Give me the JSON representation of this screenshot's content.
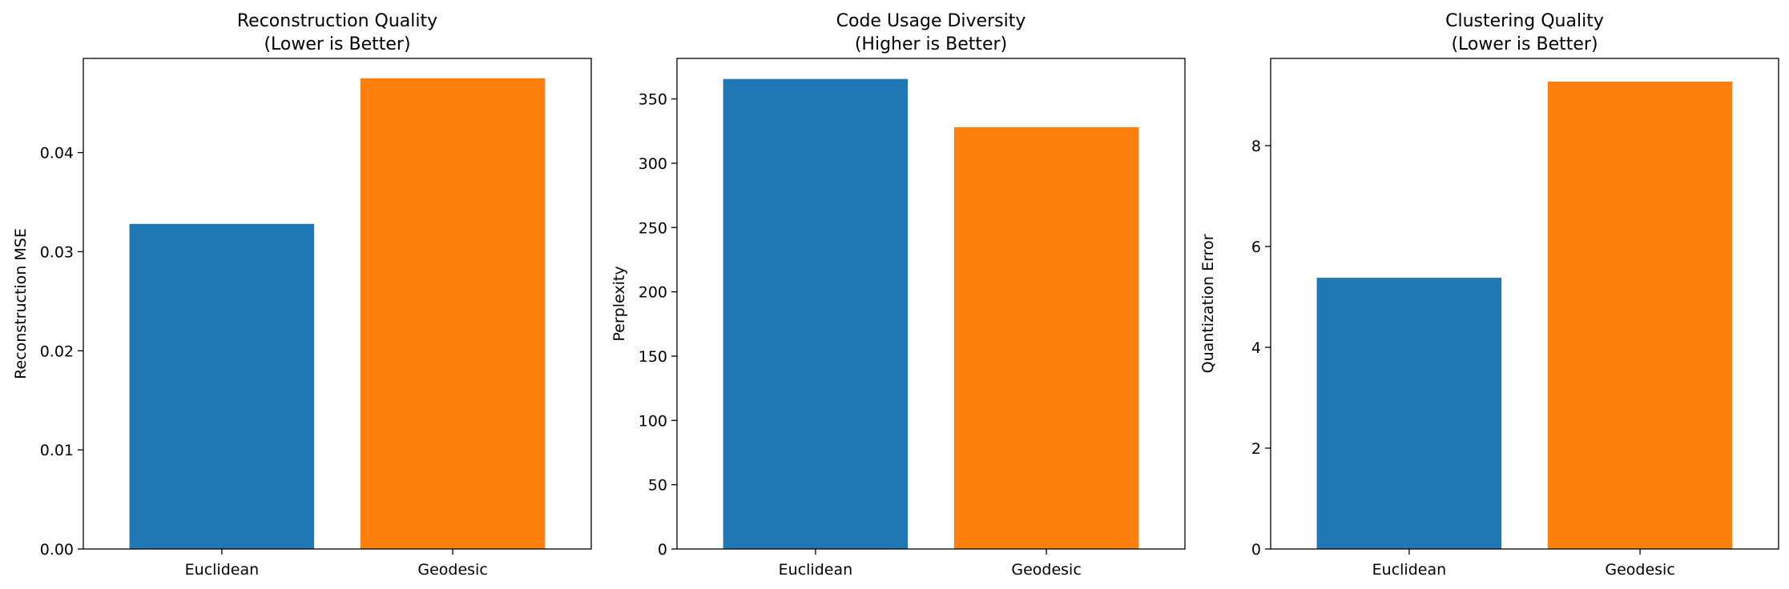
{
  "chart_data": [
    {
      "type": "bar",
      "title": "Reconstruction Quality",
      "subtitle": "(Lower is Better)",
      "xlabel": "",
      "ylabel": "Reconstruction MSE",
      "categories": [
        "Euclidean",
        "Geodesic"
      ],
      "values": [
        0.0328,
        0.0475
      ],
      "colors": [
        "#1f77b4",
        "#ff7f0e"
      ],
      "ylim": [
        0,
        0.0495
      ],
      "yticks": [
        0.0,
        0.01,
        0.02,
        0.03,
        0.04
      ],
      "ytick_labels": [
        "0.00",
        "0.01",
        "0.02",
        "0.03",
        "0.04"
      ],
      "grid": false,
      "legend": "none"
    },
    {
      "type": "bar",
      "title": "Code Usage Diversity",
      "subtitle": "(Higher is Better)",
      "xlabel": "",
      "ylabel": "Perplexity",
      "categories": [
        "Euclidean",
        "Geodesic"
      ],
      "values": [
        365.5,
        328.0
      ],
      "colors": [
        "#1f77b4",
        "#ff7f0e"
      ],
      "ylim": [
        0,
        381.5
      ],
      "yticks": [
        0,
        50,
        100,
        150,
        200,
        250,
        300,
        350
      ],
      "ytick_labels": [
        "0",
        "50",
        "100",
        "150",
        "200",
        "250",
        "300",
        "350"
      ],
      "grid": false,
      "legend": "none"
    },
    {
      "type": "bar",
      "title": "Clustering Quality",
      "subtitle": "(Lower is Better)",
      "xlabel": "",
      "ylabel": "Quantization Error",
      "categories": [
        "Euclidean",
        "Geodesic"
      ],
      "values": [
        5.38,
        9.27
      ],
      "colors": [
        "#1f77b4",
        "#ff7f0e"
      ],
      "ylim": [
        0,
        9.73
      ],
      "yticks": [
        0,
        2,
        4,
        6,
        8
      ],
      "ytick_labels": [
        "0",
        "2",
        "4",
        "6",
        "8"
      ],
      "grid": false,
      "legend": "none"
    }
  ]
}
